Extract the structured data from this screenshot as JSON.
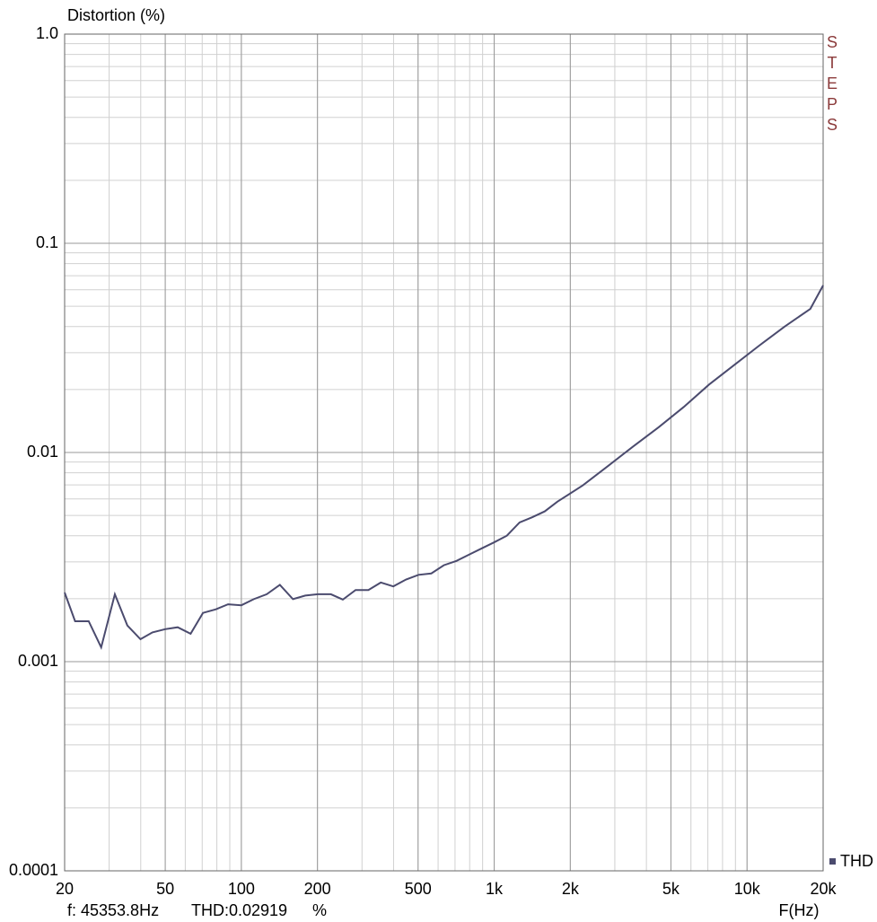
{
  "chart_data": {
    "type": "line",
    "title": "Distortion (%)",
    "xlabel": "F(Hz)",
    "watermark": "STEPS",
    "readout": [
      "f: 45353.8Hz",
      "THD:0.02919",
      "%"
    ],
    "xscale": "log",
    "yscale": "log",
    "grid": true,
    "minor_grid": true,
    "legend": "bottom-right",
    "xlim": [
      20,
      20000
    ],
    "ylim": [
      0.0001,
      1
    ],
    "xticks": [
      20,
      50,
      100,
      200,
      500,
      {
        "value": 1000,
        "label": "1k"
      },
      {
        "value": 2000,
        "label": "2k"
      },
      {
        "value": 5000,
        "label": "5k"
      },
      {
        "value": 10000,
        "label": "10k"
      },
      {
        "value": 20000,
        "label": "20k"
      }
    ],
    "yticks": [
      0.0001,
      0.001,
      0.01,
      0.1,
      {
        "value": 1,
        "label": "1.0"
      }
    ],
    "x": [
      20,
      22,
      24.9,
      27.9,
      31.6,
      35.4,
      39.9,
      44.5,
      50,
      56,
      63,
      70.5,
      79.3,
      88.6,
      100,
      112,
      126,
      142,
      160,
      179,
      201,
      226,
      252,
      283,
      318,
      356,
      399,
      448,
      502,
      564,
      632,
      709,
      796,
      893,
      1000,
      1122,
      1260,
      1413,
      1585,
      1778,
      2240,
      2820,
      3550,
      4470,
      5620,
      7070,
      8900,
      11200,
      14100,
      17800,
      20000
    ],
    "series": [
      {
        "name": "THD",
        "color": "#4b4b6e",
        "values": [
          0.00214,
          0.00156,
          0.00156,
          0.00117,
          0.0021,
          0.00149,
          0.00128,
          0.00138,
          0.00143,
          0.00146,
          0.00136,
          0.00171,
          0.00178,
          0.00188,
          0.00186,
          0.00199,
          0.0021,
          0.00233,
          0.00199,
          0.00207,
          0.0021,
          0.0021,
          0.00198,
          0.0022,
          0.0022,
          0.00239,
          0.00229,
          0.00247,
          0.0026,
          0.00264,
          0.00289,
          0.00303,
          0.00325,
          0.00348,
          0.00372,
          0.004,
          0.00463,
          0.0049,
          0.00523,
          0.00582,
          0.00696,
          0.00862,
          0.0107,
          0.0132,
          0.0165,
          0.0211,
          0.0262,
          0.0325,
          0.04,
          0.0486,
          0.0629
        ]
      }
    ]
  }
}
